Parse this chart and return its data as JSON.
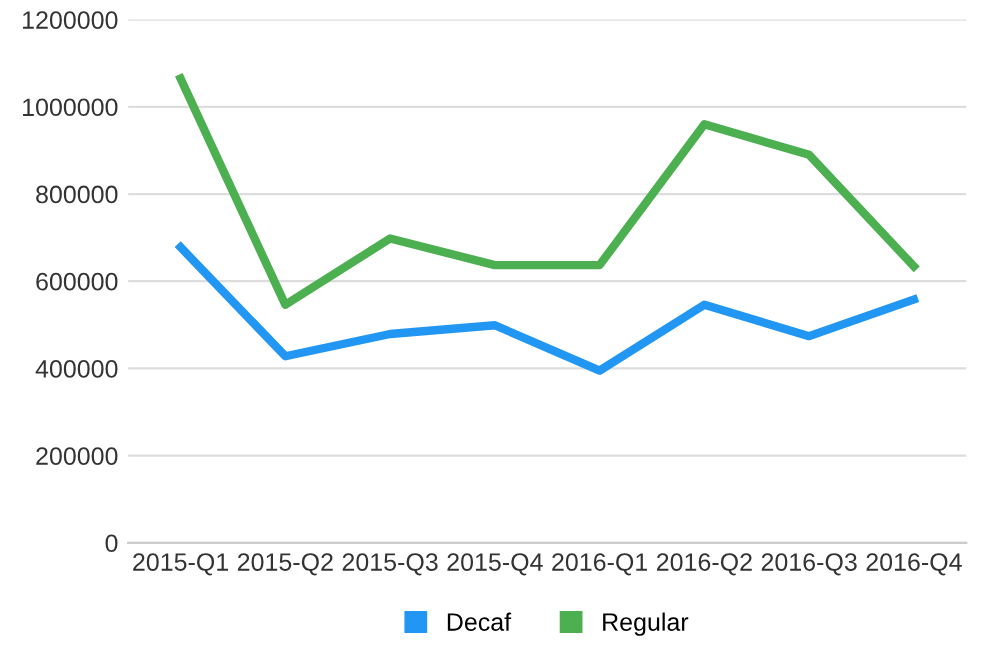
{
  "chart_data": {
    "type": "line",
    "categories": [
      "2015-Q1",
      "2015-Q2",
      "2015-Q3",
      "2015-Q4",
      "2016-Q1",
      "2016-Q2",
      "2016-Q3",
      "2016-Q4"
    ],
    "series": [
      {
        "name": "Decaf",
        "color": "#2196f3",
        "values": [
          678000,
          428000,
          479000,
          499000,
          395000,
          546000,
          474000,
          558000
        ]
      },
      {
        "name": "Regular",
        "color": "#4caf50",
        "values": [
          1065000,
          546000,
          698000,
          637000,
          637000,
          960000,
          890000,
          634000
        ]
      }
    ],
    "ylim": [
      0,
      1200000
    ],
    "yticks": [
      0,
      200000,
      400000,
      600000,
      800000,
      1000000,
      1200000
    ],
    "grid": "y",
    "legend": "bottom",
    "marker": "none",
    "line_style": "solid"
  }
}
